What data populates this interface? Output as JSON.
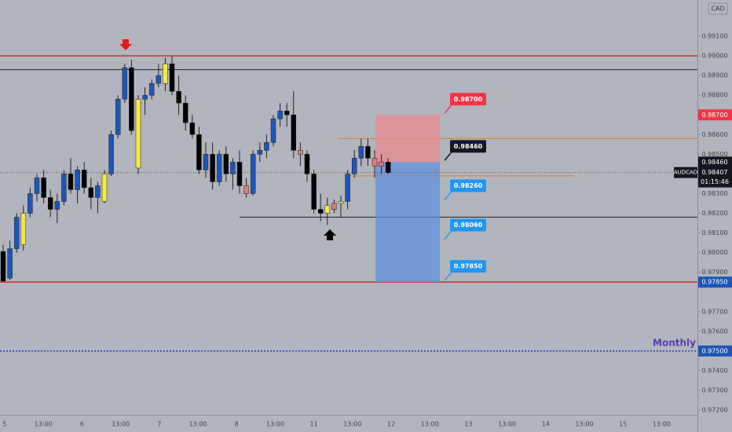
{
  "chart_data": {
    "type": "candlestick",
    "currency": "CAD",
    "symbol": "AUDCAD",
    "countdown": "01:15:46",
    "ylim": [
      0.97176,
      0.99284
    ],
    "yticks": [
      {
        "value": 0.991,
        "label": "0.99100"
      },
      {
        "value": 0.99,
        "label": "0.99000"
      },
      {
        "value": 0.989,
        "label": "0.98900"
      },
      {
        "value": 0.988,
        "label": "0.98800"
      },
      {
        "value": 0.986,
        "label": "0.98600"
      },
      {
        "value": 0.985,
        "label": "0.98500"
      },
      {
        "value": 0.983,
        "label": "0.98300"
      },
      {
        "value": 0.982,
        "label": "0.98200"
      },
      {
        "value": 0.981,
        "label": "0.98100"
      },
      {
        "value": 0.98,
        "label": "0.98000"
      },
      {
        "value": 0.979,
        "label": "0.97900"
      },
      {
        "value": 0.977,
        "label": "0.97700"
      },
      {
        "value": 0.976,
        "label": "0.97600"
      },
      {
        "value": 0.974,
        "label": "0.97400"
      },
      {
        "value": 0.973,
        "label": "0.97300"
      },
      {
        "value": 0.972,
        "label": "0.97200"
      }
    ],
    "time_labels": [
      "5",
      "13:00",
      "6",
      "13:00",
      "7",
      "13:00",
      "8",
      "13:00",
      "11",
      "13:00",
      "12",
      "13:00",
      "13",
      "13:00",
      "14",
      "13:00",
      "15",
      "13:00"
    ],
    "up_color": "#1e56b8",
    "down_color": "#000000",
    "highlights": [
      {
        "color": "#f5e84a",
        "indices": [
          3,
          15,
          20,
          24,
          48,
          50
        ]
      },
      {
        "color": "#e07a7a",
        "indices": [
          36,
          44,
          49,
          55,
          56
        ]
      }
    ],
    "candles": {
      "open": [
        0.98006,
        0.9787,
        0.9802,
        0.9804,
        0.982,
        0.983,
        0.9838,
        0.9828,
        0.9822,
        0.9826,
        0.984,
        0.9832,
        0.9842,
        0.9833,
        0.9828,
        0.9826,
        0.984,
        0.986,
        0.9878,
        0.9894,
        0.9843,
        0.9878,
        0.988,
        0.9886,
        0.9886,
        0.9896,
        0.9882,
        0.9876,
        0.9866,
        0.986,
        0.9842,
        0.985,
        0.9836,
        0.985,
        0.984,
        0.9846,
        0.9834,
        0.983,
        0.985,
        0.9852,
        0.9856,
        0.9868,
        0.9872,
        0.987,
        0.9852,
        0.985,
        0.984,
        0.9822,
        0.982,
        0.9822,
        0.9825,
        0.9826,
        0.984,
        0.9848,
        0.9854,
        0.9848,
        0.9844,
        0.9846
      ],
      "high": [
        0.9804,
        0.9806,
        0.982,
        0.9824,
        0.9833,
        0.984,
        0.9842,
        0.9832,
        0.983,
        0.9842,
        0.9848,
        0.9844,
        0.9846,
        0.9838,
        0.9836,
        0.9842,
        0.9862,
        0.988,
        0.9896,
        0.9898,
        0.988,
        0.9884,
        0.9888,
        0.9896,
        0.9899,
        0.99,
        0.989,
        0.988,
        0.987,
        0.9864,
        0.9856,
        0.9856,
        0.9852,
        0.9854,
        0.9848,
        0.9852,
        0.9838,
        0.9852,
        0.9856,
        0.986,
        0.987,
        0.9876,
        0.9876,
        0.9882,
        0.9856,
        0.9852,
        0.9842,
        0.983,
        0.9828,
        0.9827,
        0.9829,
        0.9842,
        0.9852,
        0.9858,
        0.9858,
        0.9852,
        0.985,
        0.9848
      ],
      "low": [
        0.9785,
        0.9786,
        0.98,
        0.9801,
        0.9818,
        0.9826,
        0.9825,
        0.9818,
        0.9815,
        0.9824,
        0.983,
        0.9825,
        0.983,
        0.9822,
        0.982,
        0.9825,
        0.9839,
        0.9858,
        0.9876,
        0.986,
        0.984,
        0.987,
        0.9878,
        0.9884,
        0.9882,
        0.988,
        0.987,
        0.9862,
        0.9858,
        0.984,
        0.9838,
        0.9832,
        0.9834,
        0.9836,
        0.9832,
        0.983,
        0.9828,
        0.9829,
        0.9846,
        0.9848,
        0.9854,
        0.9864,
        0.9864,
        0.9848,
        0.9844,
        0.9836,
        0.982,
        0.9816,
        0.9814,
        0.982,
        0.9818,
        0.9822,
        0.9838,
        0.9844,
        0.9844,
        0.9838,
        0.984,
        0.984
      ],
      "close": [
        0.97855,
        0.9802,
        0.9818,
        0.982,
        0.983,
        0.9838,
        0.9828,
        0.9822,
        0.9826,
        0.984,
        0.9832,
        0.9842,
        0.9833,
        0.9828,
        0.9834,
        0.984,
        0.986,
        0.9878,
        0.9894,
        0.9862,
        0.9878,
        0.988,
        0.9886,
        0.989,
        0.9896,
        0.9882,
        0.9876,
        0.9866,
        0.986,
        0.9842,
        0.985,
        0.9836,
        0.985,
        0.984,
        0.9846,
        0.9834,
        0.983,
        0.985,
        0.9852,
        0.9856,
        0.9868,
        0.9872,
        0.987,
        0.9852,
        0.985,
        0.984,
        0.9822,
        0.982,
        0.9824,
        0.9825,
        0.9826,
        0.984,
        0.9848,
        0.9854,
        0.9848,
        0.9844,
        0.9846,
        0.98407
      ]
    },
    "last_price": 0.98407,
    "last_price_label": "0.98407",
    "levels": [
      {
        "value": 0.99,
        "color": "#d32f2f"
      },
      {
        "value": 0.9893,
        "color": "#222222"
      },
      {
        "value": 0.9785,
        "color": "#d32f2f"
      },
      {
        "value": 0.9818,
        "color": "#222222"
      },
      {
        "value": 0.9858,
        "color": "#e0812b"
      },
      {
        "value": 0.9839,
        "color": "#e0812b"
      }
    ],
    "monthly": {
      "label": "Monthly",
      "value": 0.975,
      "value_label": "0.97500",
      "color": "#1e3bd8"
    },
    "position": {
      "entry": 0.9846,
      "stop": 0.987,
      "target": 0.9785
    },
    "callouts": [
      {
        "value": 0.987,
        "label": "0.98700",
        "color": "#f23645"
      },
      {
        "value": 0.9846,
        "label": "0.98460",
        "color": "#131722"
      },
      {
        "value": 0.9826,
        "label": "0.98260",
        "color": "#2196f3"
      },
      {
        "value": 0.9806,
        "label": "0.98060",
        "color": "#2196f3"
      },
      {
        "value": 0.9785,
        "label": "0.97850",
        "color": "#2196f3"
      }
    ],
    "price_badges": [
      {
        "value": 0.987,
        "label": "0.98700",
        "color": "#f23645"
      },
      {
        "value": 0.9846,
        "label": "0.98460",
        "color": "#131722"
      },
      {
        "value": 0.9785,
        "label": "0.97850",
        "color": "#1e56b8"
      }
    ]
  }
}
